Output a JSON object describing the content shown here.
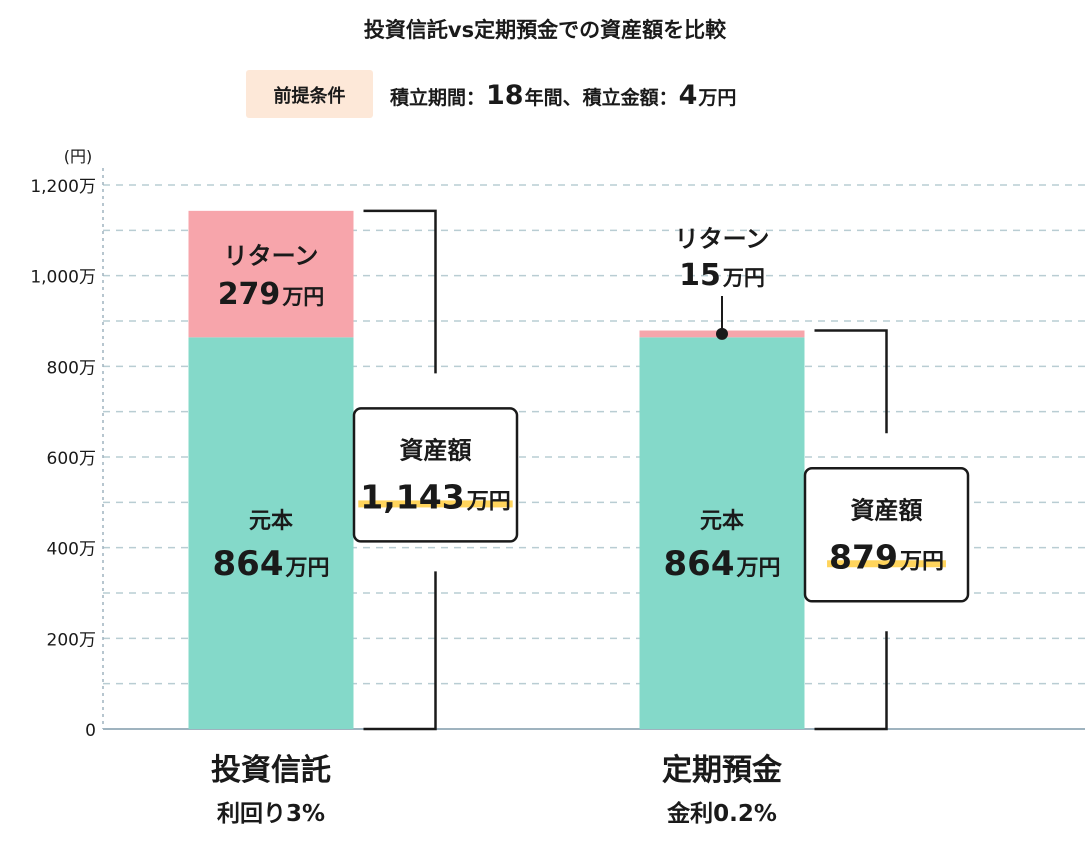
{
  "chart_data": {
    "type": "bar",
    "stacked": true,
    "title": "投資信託vs定期預金での資産額を比較",
    "condition": {
      "badge": "前提条件",
      "period_label": "積立期間：",
      "period_value": "18",
      "period_unit": "年間、",
      "amount_label": "積立金額：",
      "amount_value": "4",
      "amount_unit": "万円"
    },
    "y_unit": "(円)",
    "ylim": [
      0,
      1200
    ],
    "y_ticks": [
      {
        "value": 0,
        "label": "0"
      },
      {
        "value": 200,
        "label": "200万"
      },
      {
        "value": 400,
        "label": "400万"
      },
      {
        "value": 600,
        "label": "600万"
      },
      {
        "value": 800,
        "label": "800万"
      },
      {
        "value": 1000,
        "label": "1,000万"
      },
      {
        "value": 1200,
        "label": "1,200万"
      }
    ],
    "gridlines": [
      100,
      200,
      300,
      400,
      500,
      600,
      700,
      800,
      900,
      1000,
      1100,
      1200
    ],
    "categories": [
      {
        "name": "投資信託",
        "sub": "利回り3%"
      },
      {
        "name": "定期預金",
        "sub": "金利0.2%"
      }
    ],
    "series": [
      {
        "name": "元本",
        "values": [
          864,
          864
        ],
        "color": "#84d9c9"
      },
      {
        "name": "リターン",
        "values": [
          279,
          15
        ],
        "color": "#f7a5ab"
      }
    ],
    "segment_labels": {
      "principal": [
        {
          "title": "元本",
          "value": "864",
          "unit": "万円"
        },
        {
          "title": "元本",
          "value": "864",
          "unit": "万円"
        }
      ],
      "return": [
        {
          "title": "リターン",
          "value": "279",
          "unit": "万円"
        },
        {
          "title": "リターン",
          "value": "15",
          "unit": "万円"
        }
      ]
    },
    "totals": [
      {
        "title": "資産額",
        "value": "1,143",
        "unit": "万円"
      },
      {
        "title": "資産額",
        "value": "879",
        "unit": "万円"
      }
    ],
    "colors": {
      "axis": "#9fb3bf",
      "grid": "#b9cdd3",
      "highlight": "#ffd45c",
      "badge_bg": "#fde8d8",
      "text": "#1a1a1a"
    }
  }
}
